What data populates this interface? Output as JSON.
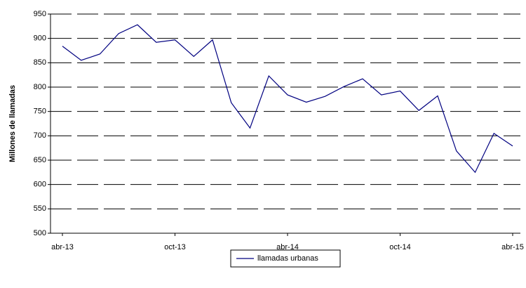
{
  "chart_data": {
    "type": "line",
    "y_label": "Millones de llamadas",
    "categories": [
      "abr-13",
      null,
      null,
      null,
      null,
      null,
      "oct-13",
      null,
      null,
      null,
      null,
      null,
      "abr-14",
      null,
      null,
      null,
      null,
      null,
      "oct-14",
      null,
      null,
      null,
      null,
      null,
      "abr-15"
    ],
    "series": [
      {
        "name": "llamadas urbanas",
        "color": "#000080",
        "values": [
          884,
          855,
          868,
          910,
          928,
          892,
          897,
          863,
          897,
          768,
          716,
          823,
          784,
          769,
          781,
          801,
          817,
          784,
          792,
          752,
          782,
          669,
          625,
          705,
          679
        ]
      }
    ],
    "ylim": [
      500,
      950
    ],
    "yticks": [
      500,
      550,
      600,
      650,
      700,
      750,
      800,
      850,
      900,
      950
    ],
    "grid": true,
    "legend": "bottom"
  }
}
